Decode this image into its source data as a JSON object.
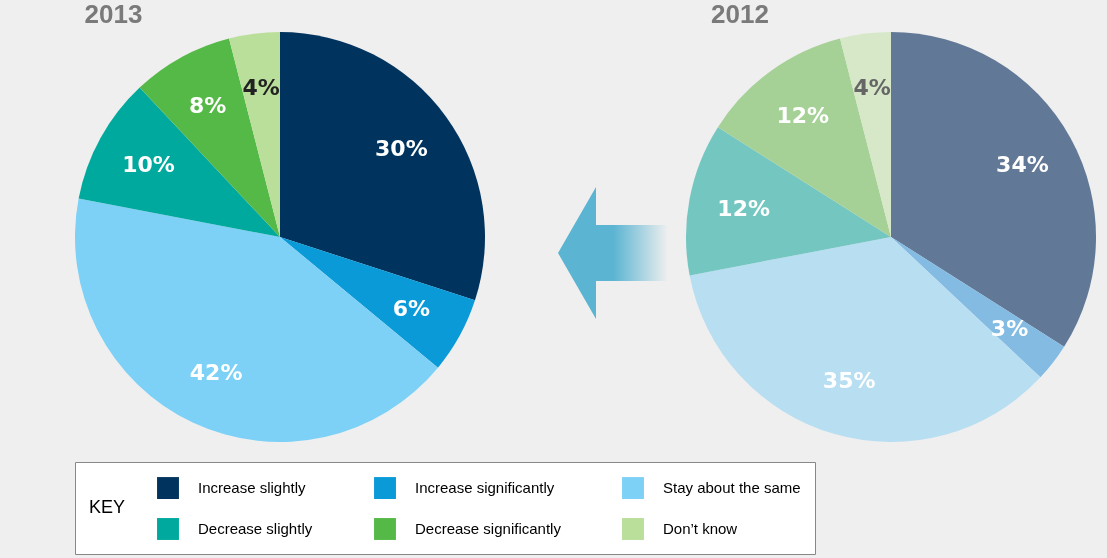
{
  "chart_data": [
    {
      "type": "pie",
      "title": "2013",
      "categories": [
        "Increase slightly",
        "Increase significantly",
        "Stay about the same",
        "Decrease slightly",
        "Decrease significantly",
        "Don’t know"
      ],
      "values": [
        30,
        6,
        42,
        10,
        8,
        4
      ],
      "value_labels": [
        "30%",
        "6%",
        "42%",
        "10%",
        "8%",
        "4%"
      ],
      "colors": [
        "#00345e",
        "#0a9ad8",
        "#7dd1f6",
        "#00a99d",
        "#55b947",
        "#badf9a"
      ],
      "legend": "bottom",
      "legend_title": "KEY"
    },
    {
      "type": "pie",
      "title": "2012",
      "categories": [
        null,
        null,
        null,
        null,
        null,
        null
      ],
      "values": [
        34,
        3,
        35,
        12,
        12,
        4
      ],
      "value_labels": [
        "34%",
        "3%",
        "35%",
        "12%",
        "12%",
        "4%"
      ],
      "colors": [
        "#627897",
        "#83bbe3",
        "#b8def2",
        "#74c6c1",
        "#a5d196",
        "#d6e8c8"
      ]
    }
  ]
}
